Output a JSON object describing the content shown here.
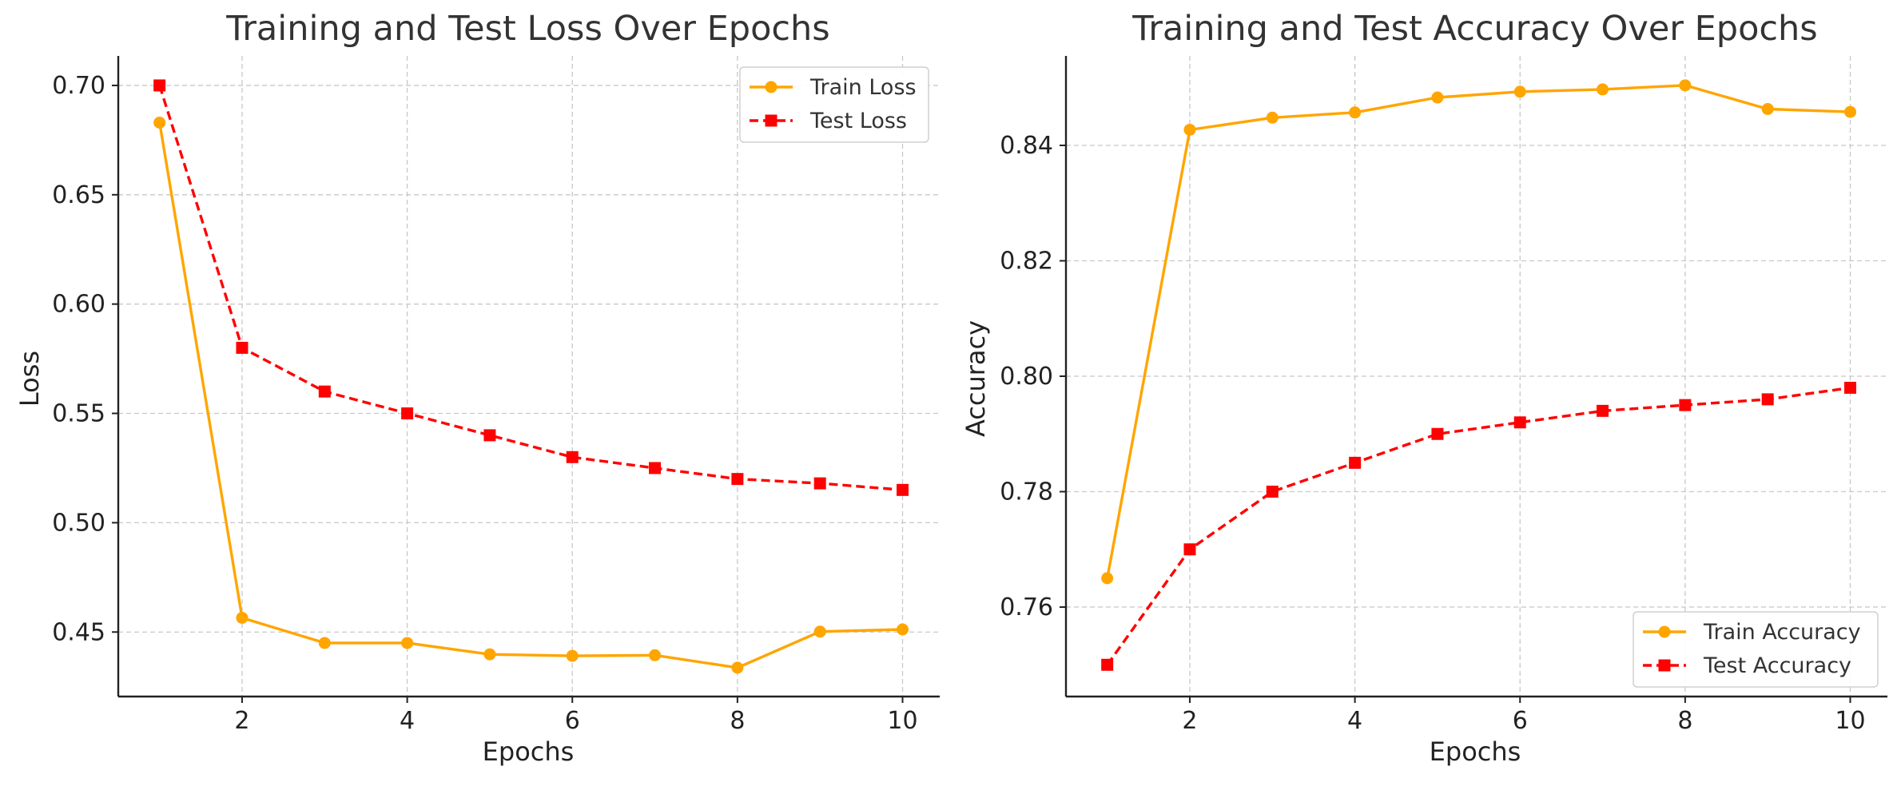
{
  "chart_data": [
    {
      "type": "line",
      "title": "Training and Test Loss Over Epochs",
      "xlabel": "Epochs",
      "ylabel": "Loss",
      "x": [
        1,
        2,
        3,
        4,
        5,
        6,
        7,
        8,
        9,
        10
      ],
      "xlim": [
        0.5,
        10.45
      ],
      "ylim": [
        0.4205,
        0.7135
      ],
      "xticks": [
        2,
        4,
        6,
        8,
        10
      ],
      "yticks": [
        0.45,
        0.5,
        0.55,
        0.6,
        0.65,
        0.7
      ],
      "ytick_labels": [
        "0.45",
        "0.50",
        "0.55",
        "0.60",
        "0.65",
        "0.70"
      ],
      "grid": true,
      "legend_position": "top-right",
      "series": [
        {
          "name": "Train Loss",
          "color": "#FFA500",
          "style": "solid",
          "marker": "circle",
          "values": [
            0.683,
            0.4565,
            0.445,
            0.445,
            0.4398,
            0.4391,
            0.4394,
            0.4337,
            0.4502,
            0.4512
          ]
        },
        {
          "name": "Test Loss",
          "color": "#FF0000",
          "style": "dashed",
          "marker": "square",
          "values": [
            0.7,
            0.58,
            0.56,
            0.55,
            0.54,
            0.53,
            0.525,
            0.52,
            0.518,
            0.515
          ]
        }
      ]
    },
    {
      "type": "line",
      "title": "Training and Test Accuracy Over Epochs",
      "xlabel": "Epochs",
      "ylabel": "Accuracy",
      "x": [
        1,
        2,
        3,
        4,
        5,
        6,
        7,
        8,
        9,
        10
      ],
      "xlim": [
        0.5,
        10.45
      ],
      "ylim": [
        0.7445,
        0.8555
      ],
      "xticks": [
        2,
        4,
        6,
        8,
        10
      ],
      "yticks": [
        0.76,
        0.78,
        0.8,
        0.82,
        0.84
      ],
      "ytick_labels": [
        "0.76",
        "0.78",
        "0.80",
        "0.82",
        "0.84"
      ],
      "grid": true,
      "legend_position": "bottom-right",
      "series": [
        {
          "name": "Train Accuracy",
          "color": "#FFA500",
          "style": "solid",
          "marker": "circle",
          "values": [
            0.765,
            0.8427,
            0.8448,
            0.8457,
            0.8483,
            0.8493,
            0.8497,
            0.8504,
            0.8463,
            0.8458
          ]
        },
        {
          "name": "Test Accuracy",
          "color": "#FF0000",
          "style": "dashed",
          "marker": "square",
          "values": [
            0.75,
            0.77,
            0.78,
            0.785,
            0.79,
            0.792,
            0.794,
            0.795,
            0.796,
            0.798
          ]
        }
      ]
    }
  ]
}
